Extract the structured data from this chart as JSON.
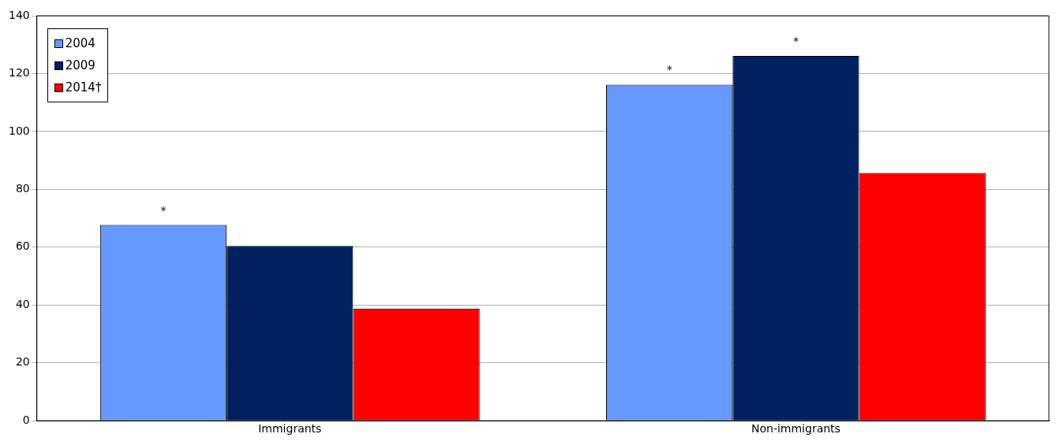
{
  "chart_data": {
    "type": "bar",
    "categories": [
      "Immigrants",
      "Non-immigrants"
    ],
    "series": [
      {
        "name": "2004",
        "color": "#6699ff",
        "values": [
          67.7,
          116.2
        ],
        "value_labels": [
          "*",
          "*"
        ]
      },
      {
        "name": "2009",
        "color": "#002060",
        "values": [
          60.4,
          126.1
        ],
        "value_labels": [
          null,
          "*"
        ]
      },
      {
        "name": "2014†",
        "color": "#ff0000",
        "values": [
          38.8,
          85.7
        ],
        "value_labels": [
          null,
          null
        ]
      }
    ],
    "ylim": [
      0,
      140
    ],
    "yticks": [
      0,
      20,
      40,
      60,
      80,
      100,
      120,
      140
    ],
    "grid": "y",
    "legend": "top left"
  }
}
